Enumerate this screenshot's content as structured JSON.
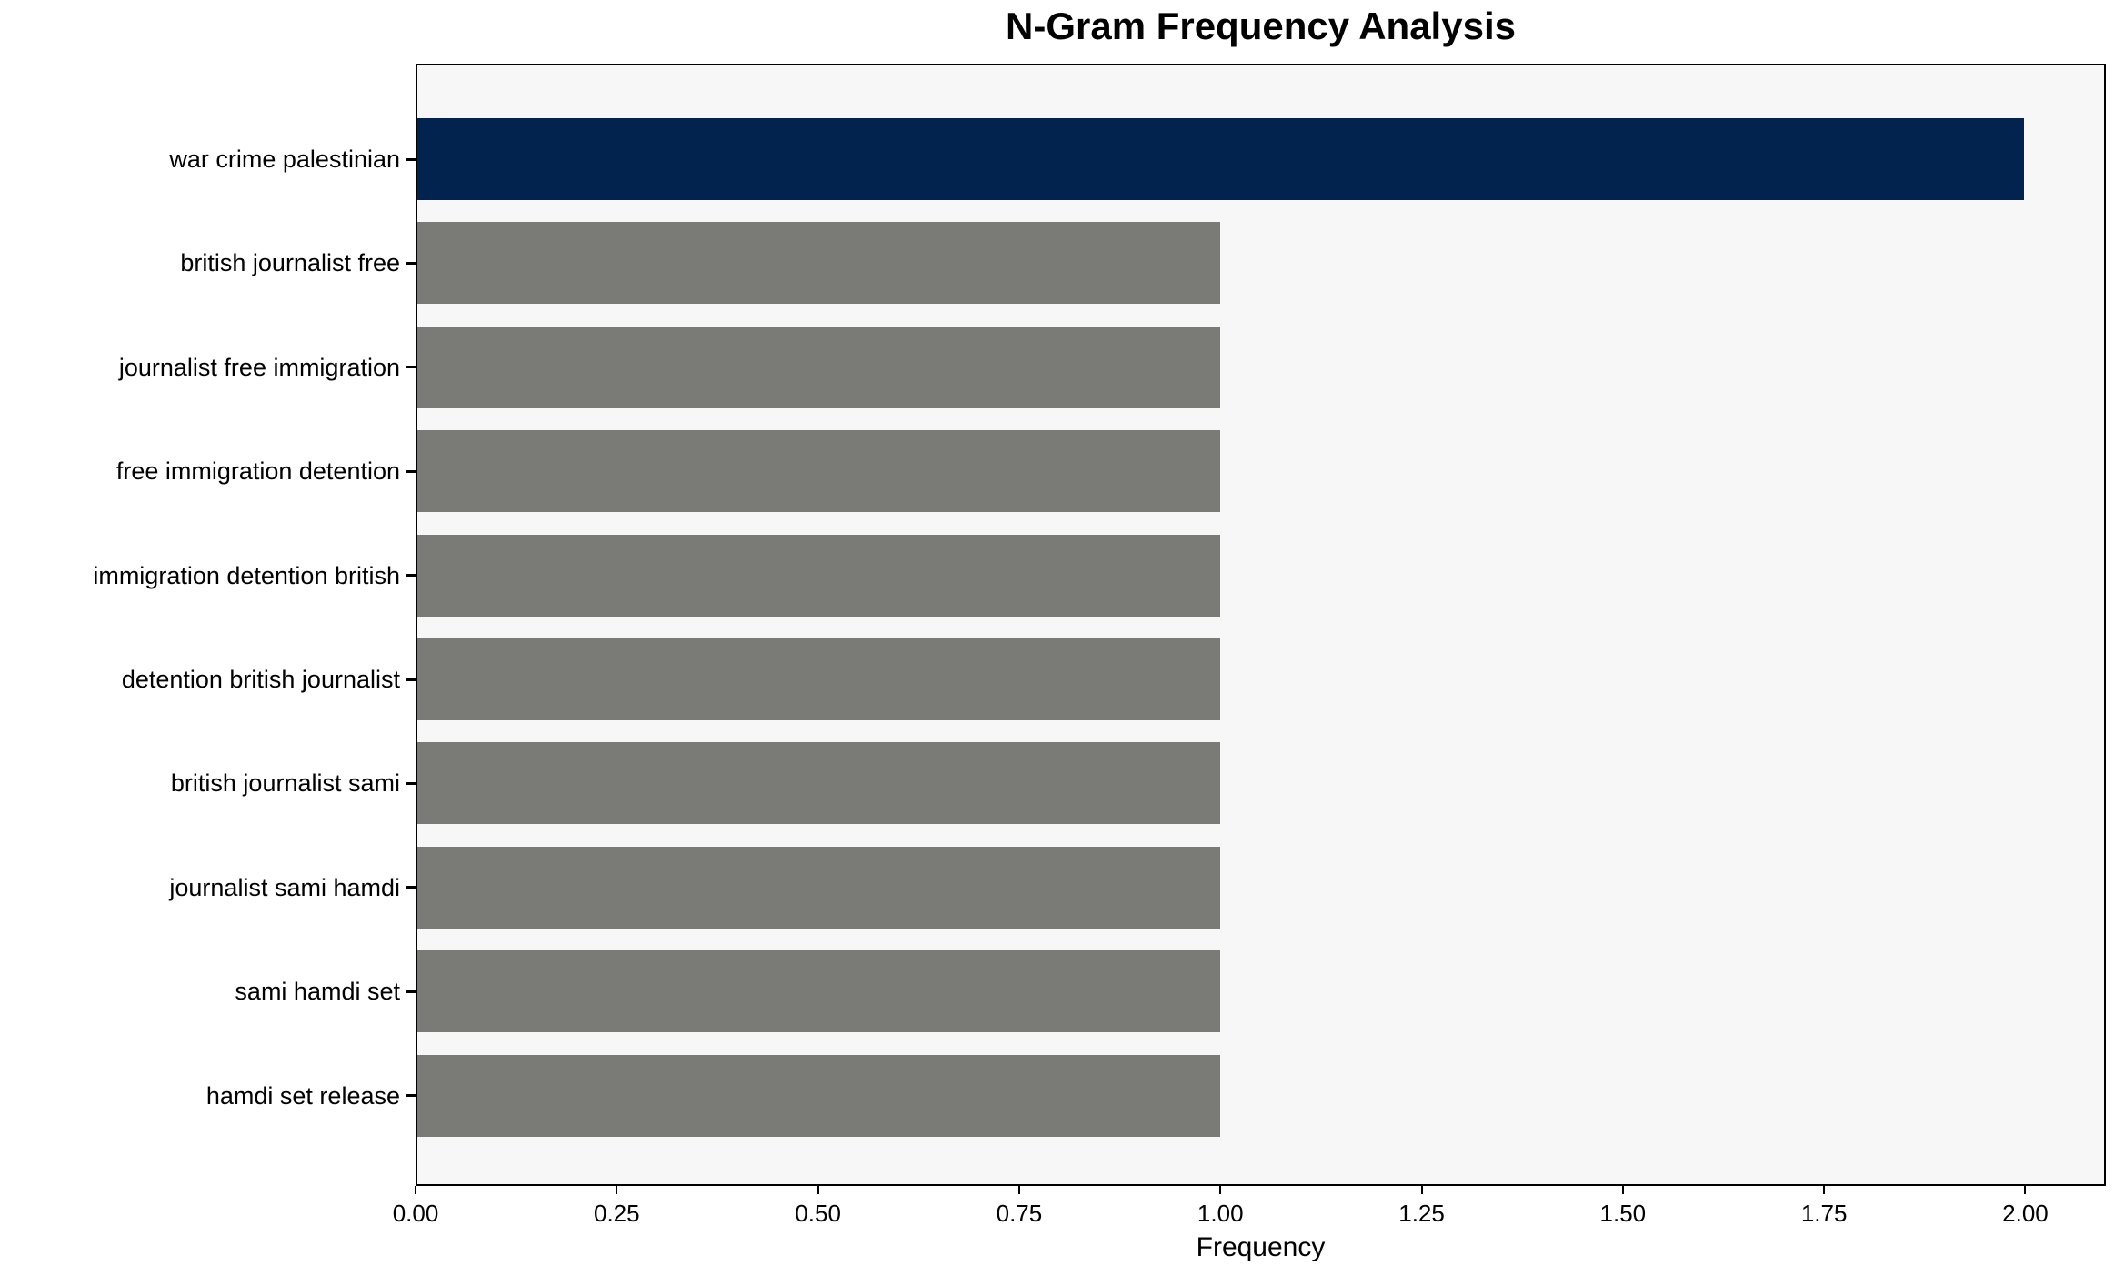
{
  "chart_data": {
    "type": "bar",
    "orientation": "horizontal",
    "title": "N-Gram Frequency Analysis",
    "xlabel": "Frequency",
    "ylabel": "",
    "categories": [
      "war crime palestinian",
      "british journalist free",
      "journalist free immigration",
      "free immigration detention",
      "immigration detention british",
      "detention british journalist",
      "british journalist sami",
      "journalist sami hamdi",
      "sami hamdi set",
      "hamdi set release"
    ],
    "values": [
      2,
      1,
      1,
      1,
      1,
      1,
      1,
      1,
      1,
      1
    ],
    "bar_colors": [
      "#02234e",
      "#7a7a77",
      "#7a7a77",
      "#7a7a77",
      "#7a7a77",
      "#7a7a77",
      "#7a7a77",
      "#7a7a77",
      "#7a7a77",
      "#7a7a77"
    ],
    "xlim": [
      0,
      2.1
    ],
    "x_tick_values": [
      0,
      0.25,
      0.5,
      0.75,
      1,
      1.25,
      1.5,
      1.75,
      2
    ],
    "x_tick_labels": [
      "0.00",
      "0.25",
      "0.50",
      "0.75",
      "1.00",
      "1.25",
      "1.50",
      "1.75",
      "2.00"
    ],
    "grid": false,
    "legend": null,
    "colors": {
      "highlight_bar": "#02234e",
      "default_bar": "#7a7a77",
      "plot_background": "#f7f7f7",
      "figure_background": "#ffffff",
      "spine": "#000000",
      "text": "#000000"
    }
  }
}
